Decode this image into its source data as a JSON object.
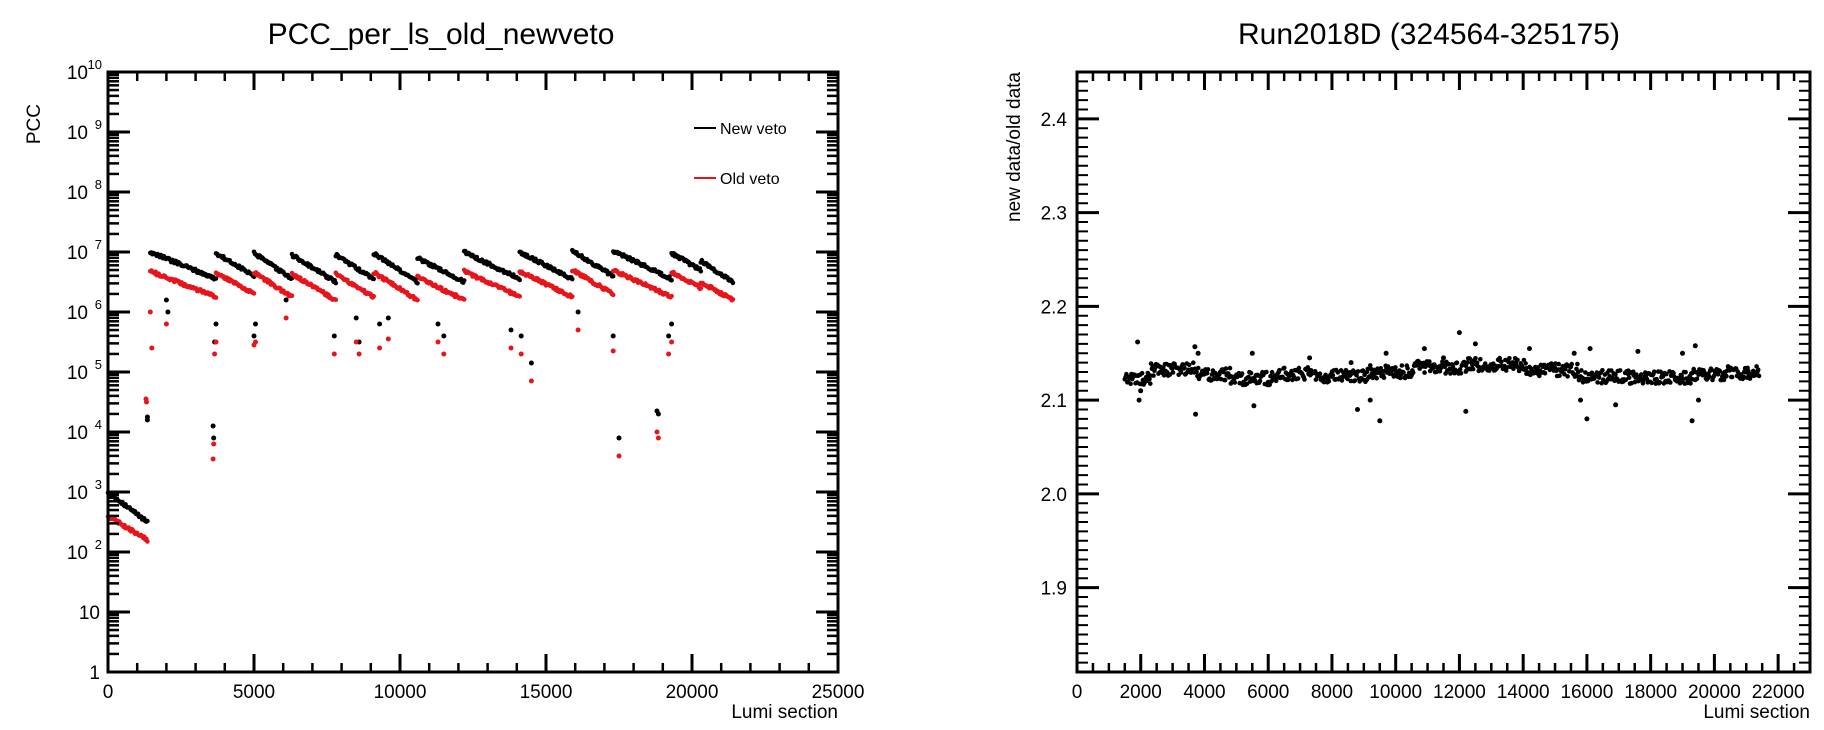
{
  "chart_data": [
    {
      "type": "scatter",
      "title": "PCC_per_ls_old_newveto",
      "xlabel": "Lumi section",
      "ylabel": "PCC",
      "xlim": [
        0,
        25000
      ],
      "ylim": [
        1,
        10000000000
      ],
      "yscale": "log",
      "grid": false,
      "legend_position": "top-right",
      "x_ticks": [
        0,
        5000,
        10000,
        15000,
        20000,
        25000
      ],
      "x_tick_labels": [
        "0",
        "5000",
        "10000",
        "15000",
        "20000",
        "25000"
      ],
      "y_ticks": [
        1,
        10,
        100,
        1000,
        10000,
        100000,
        1000000,
        10000000,
        100000000,
        1000000000,
        10000000000
      ],
      "y_tick_labels": [
        {
          "base": "1",
          "exp": ""
        },
        {
          "base": "10",
          "exp": ""
        },
        {
          "base": "10",
          "exp": "2"
        },
        {
          "base": "10",
          "exp": "3"
        },
        {
          "base": "10",
          "exp": "4"
        },
        {
          "base": "10",
          "exp": "5"
        },
        {
          "base": "10",
          "exp": "6"
        },
        {
          "base": "10",
          "exp": "7"
        },
        {
          "base": "10",
          "exp": "8"
        },
        {
          "base": "10",
          "exp": "9"
        },
        {
          "base": "10",
          "exp": "10"
        }
      ],
      "series": [
        {
          "name": "New veto",
          "color": "#000000",
          "fills": [
            {
              "x_start": 0,
              "x_end": 1350,
              "log_high": 3.0,
              "log_low": 2.5
            },
            {
              "x_start": 1450,
              "x_end": 3700,
              "log_high": 7.0,
              "log_low": 6.55
            },
            {
              "x_start": 3700,
              "x_end": 5000,
              "log_high": 6.98,
              "log_low": 6.6
            },
            {
              "x_start": 5000,
              "x_end": 6300,
              "log_high": 6.98,
              "log_low": 6.55
            },
            {
              "x_start": 6300,
              "x_end": 7800,
              "log_high": 6.95,
              "log_low": 6.5
            },
            {
              "x_start": 7800,
              "x_end": 9100,
              "log_high": 6.95,
              "log_low": 6.55
            },
            {
              "x_start": 9100,
              "x_end": 10600,
              "log_high": 6.98,
              "log_low": 6.5
            },
            {
              "x_start": 10600,
              "x_end": 12200,
              "log_high": 6.9,
              "log_low": 6.5
            },
            {
              "x_start": 12200,
              "x_end": 14100,
              "log_high": 7.0,
              "log_low": 6.55
            },
            {
              "x_start": 14100,
              "x_end": 15900,
              "log_high": 7.0,
              "log_low": 6.55
            },
            {
              "x_start": 15900,
              "x_end": 17300,
              "log_high": 7.02,
              "log_low": 6.6
            },
            {
              "x_start": 17300,
              "x_end": 19300,
              "log_high": 7.02,
              "log_low": 6.55
            },
            {
              "x_start": 19300,
              "x_end": 20300,
              "log_high": 6.98,
              "log_low": 6.7
            },
            {
              "x_start": 20300,
              "x_end": 21400,
              "log_high": 6.85,
              "log_low": 6.5
            }
          ],
          "points": [
            [
              1350,
              4.2
            ],
            [
              1350,
              4.25
            ],
            [
              3600,
              4.1
            ],
            [
              3620,
              3.9
            ],
            [
              3650,
              5.5
            ],
            [
              3700,
              5.8
            ],
            [
              5000,
              5.6
            ],
            [
              5050,
              5.8
            ],
            [
              6100,
              6.2
            ],
            [
              7750,
              5.6
            ],
            [
              8500,
              5.9
            ],
            [
              8600,
              5.5
            ],
            [
              9300,
              5.8
            ],
            [
              9600,
              5.9
            ],
            [
              11300,
              5.8
            ],
            [
              11500,
              5.6
            ],
            [
              13800,
              5.7
            ],
            [
              14150,
              5.6
            ],
            [
              14500,
              5.15
            ],
            [
              16100,
              6.0
            ],
            [
              17500,
              3.9
            ],
            [
              17300,
              5.6
            ],
            [
              18800,
              4.35
            ],
            [
              18850,
              4.3
            ],
            [
              19200,
              5.6
            ],
            [
              19300,
              5.8
            ],
            [
              2000,
              6.2
            ],
            [
              2050,
              6.0
            ]
          ]
        },
        {
          "name": "Old veto",
          "color": "#e8141c",
          "fills": [
            {
              "x_start": 0,
              "x_end": 1350,
              "log_high": 2.6,
              "log_low": 2.2
            },
            {
              "x_start": 1450,
              "x_end": 3700,
              "log_high": 6.68,
              "log_low": 6.25
            },
            {
              "x_start": 3700,
              "x_end": 5000,
              "log_high": 6.66,
              "log_low": 6.3
            },
            {
              "x_start": 5000,
              "x_end": 6300,
              "log_high": 6.66,
              "log_low": 6.25
            },
            {
              "x_start": 6300,
              "x_end": 7800,
              "log_high": 6.63,
              "log_low": 6.2
            },
            {
              "x_start": 7800,
              "x_end": 9100,
              "log_high": 6.63,
              "log_low": 6.25
            },
            {
              "x_start": 9100,
              "x_end": 10600,
              "log_high": 6.66,
              "log_low": 6.2
            },
            {
              "x_start": 10600,
              "x_end": 12200,
              "log_high": 6.58,
              "log_low": 6.2
            },
            {
              "x_start": 12200,
              "x_end": 14100,
              "log_high": 6.68,
              "log_low": 6.25
            },
            {
              "x_start": 14100,
              "x_end": 15900,
              "log_high": 6.68,
              "log_low": 6.25
            },
            {
              "x_start": 15900,
              "x_end": 17300,
              "log_high": 6.7,
              "log_low": 6.3
            },
            {
              "x_start": 17300,
              "x_end": 19300,
              "log_high": 6.7,
              "log_low": 6.25
            },
            {
              "x_start": 19300,
              "x_end": 20300,
              "log_high": 6.66,
              "log_low": 6.4
            },
            {
              "x_start": 20300,
              "x_end": 21400,
              "log_high": 6.5,
              "log_low": 6.2
            }
          ],
          "points": [
            [
              1300,
              4.55
            ],
            [
              1320,
              4.5
            ],
            [
              3600,
              3.55
            ],
            [
              3620,
              3.8
            ],
            [
              3650,
              5.3
            ],
            [
              3700,
              5.5
            ],
            [
              5000,
              5.45
            ],
            [
              5050,
              5.5
            ],
            [
              6100,
              5.9
            ],
            [
              7750,
              5.3
            ],
            [
              8500,
              5.5
            ],
            [
              8600,
              5.3
            ],
            [
              9300,
              5.4
            ],
            [
              9600,
              5.55
            ],
            [
              11300,
              5.5
            ],
            [
              11500,
              5.3
            ],
            [
              13800,
              5.4
            ],
            [
              14150,
              5.3
            ],
            [
              14500,
              4.85
            ],
            [
              16100,
              5.7
            ],
            [
              17500,
              3.6
            ],
            [
              17300,
              5.35
            ],
            [
              18800,
              4.0
            ],
            [
              18850,
              3.9
            ],
            [
              19200,
              5.3
            ],
            [
              19300,
              5.5
            ],
            [
              1450,
              6.0
            ],
            [
              1500,
              5.4
            ],
            [
              2000,
              5.8
            ]
          ]
        }
      ]
    },
    {
      "type": "scatter",
      "title": "Run2018D (324564-325175)",
      "xlabel": "Lumi section",
      "ylabel": "new data/old data",
      "xlim": [
        0,
        23000
      ],
      "ylim": [
        1.81,
        2.45
      ],
      "grid": false,
      "x_ticks": [
        0,
        2000,
        4000,
        6000,
        8000,
        10000,
        12000,
        14000,
        16000,
        18000,
        20000,
        22000
      ],
      "x_tick_labels": [
        "0",
        "2000",
        "4000",
        "6000",
        "8000",
        "10000",
        "12000",
        "14000",
        "16000",
        "18000",
        "20000",
        "22000"
      ],
      "y_ticks": [
        1.9,
        2.0,
        2.1,
        2.2,
        2.3,
        2.4
      ],
      "y_tick_labels": [
        "1.9",
        "2.0",
        "2.1",
        "2.2",
        "2.3",
        "2.4"
      ],
      "series": [
        {
          "color": "#000000",
          "band_segments": [
            {
              "x_start": 1500,
              "x_end": 2300,
              "y": 2.123
            },
            {
              "x_start": 2300,
              "x_end": 3700,
              "y": 2.133
            },
            {
              "x_start": 3700,
              "x_end": 4800,
              "y": 2.128
            },
            {
              "x_start": 4800,
              "x_end": 6300,
              "y": 2.123
            },
            {
              "x_start": 6300,
              "x_end": 7700,
              "y": 2.128
            },
            {
              "x_start": 7700,
              "x_end": 9100,
              "y": 2.126
            },
            {
              "x_start": 9100,
              "x_end": 10500,
              "y": 2.13
            },
            {
              "x_start": 10500,
              "x_end": 12200,
              "y": 2.135
            },
            {
              "x_start": 12200,
              "x_end": 14100,
              "y": 2.138
            },
            {
              "x_start": 14100,
              "x_end": 15700,
              "y": 2.132
            },
            {
              "x_start": 15700,
              "x_end": 17300,
              "y": 2.125
            },
            {
              "x_start": 17300,
              "x_end": 19300,
              "y": 2.124
            },
            {
              "x_start": 19300,
              "x_end": 20300,
              "y": 2.127
            },
            {
              "x_start": 20300,
              "x_end": 21400,
              "y": 2.129
            }
          ],
          "outliers": [
            [
              1900,
              2.162
            ],
            [
              1950,
              2.1
            ],
            [
              2000,
              2.11
            ],
            [
              3700,
              2.157
            ],
            [
              3720,
              2.085
            ],
            [
              3800,
              2.15
            ],
            [
              5500,
              2.15
            ],
            [
              5550,
              2.094
            ],
            [
              7300,
              2.145
            ],
            [
              8600,
              2.14
            ],
            [
              8800,
              2.09
            ],
            [
              9200,
              2.1
            ],
            [
              9500,
              2.078
            ],
            [
              9700,
              2.15
            ],
            [
              10900,
              2.155
            ],
            [
              11500,
              2.145
            ],
            [
              12000,
              2.172
            ],
            [
              12200,
              2.088
            ],
            [
              12500,
              2.16
            ],
            [
              14200,
              2.155
            ],
            [
              15600,
              2.15
            ],
            [
              15800,
              2.1
            ],
            [
              16000,
              2.08
            ],
            [
              16100,
              2.155
            ],
            [
              16900,
              2.095
            ],
            [
              17600,
              2.152
            ],
            [
              19000,
              2.15
            ],
            [
              19300,
              2.078
            ],
            [
              19400,
              2.158
            ],
            [
              19500,
              2.1
            ]
          ]
        }
      ]
    }
  ]
}
